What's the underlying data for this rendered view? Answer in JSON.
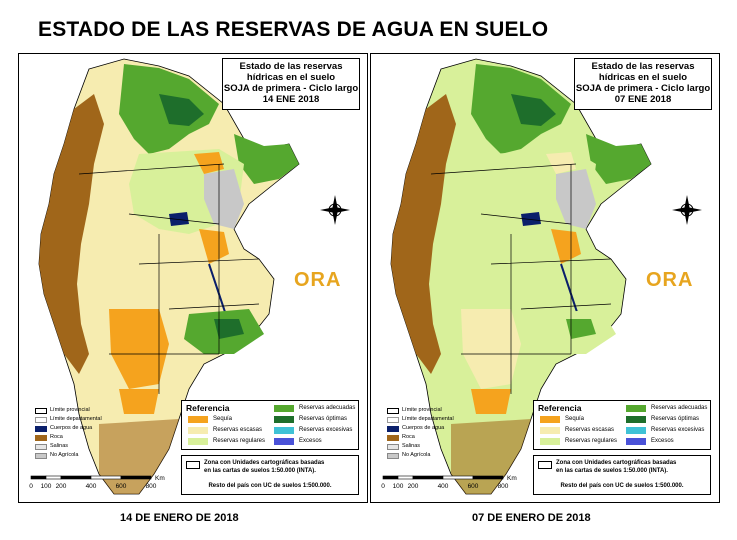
{
  "title": "ESTADO DE LAS RESERVAS DE AGUA EN SUELO",
  "panels": [
    {
      "info": [
        "Estado de las reservas",
        "hídricas en el suelo",
        "SOJA de primera - Ciclo largo",
        "14 ENE 2018"
      ],
      "caption": "14 DE ENERO DE 2018"
    },
    {
      "info": [
        "Estado de las reservas",
        "hídricas en el suelo",
        "SOJA de primera - Ciclo largo",
        "07 ENE 2018"
      ],
      "caption": "07 DE ENERO DE 2018"
    }
  ],
  "legend_small": [
    {
      "label": "Límite provincial",
      "color": "#ffffff",
      "border": "#000000"
    },
    {
      "label": "Límite departamental",
      "color": "#ffffff",
      "border": "#999999"
    },
    {
      "label": "Cuerpos de agua",
      "color": "#0a1f6b",
      "border": "#0a1f6b"
    },
    {
      "label": "Roca",
      "color": "#a0661a",
      "border": "#a0661a"
    },
    {
      "label": "Salinas",
      "color": "#e6e6e6",
      "border": "#888888"
    },
    {
      "label": "No Agrícola",
      "color": "#c8c8c8",
      "border": "#888888"
    }
  ],
  "referencia": {
    "title": "Referencia",
    "left": [
      {
        "label": "Sequía",
        "color": "#f5a31e"
      },
      {
        "label": "Reservas escasas",
        "color": "#f6ecb0"
      },
      {
        "label": "Reservas regulares",
        "color": "#d8f09a"
      }
    ],
    "right": [
      {
        "label": "Reservas adecuadas",
        "color": "#55a82f"
      },
      {
        "label": "Reservas óptimas",
        "color": "#1e6e2b"
      },
      {
        "label": "Reservas excesivas",
        "color": "#3fc2d6"
      },
      {
        "label": "Excesos",
        "color": "#4a52d8"
      }
    ]
  },
  "zona": {
    "line1": "Zona con Unidades cartográficas basadas",
    "line2": "en las cartas de suelos 1:50.000 (INTA).",
    "rest": "Resto del país con UC de suelos 1:500.000."
  },
  "scale": {
    "ticks": [
      "0",
      "100",
      "200",
      "400",
      "600",
      "800"
    ],
    "unit": "Km"
  },
  "logo": "ORA",
  "colors": {
    "sequia": "#f5a31e",
    "escasas": "#f6ecb0",
    "regulares": "#d8f09a",
    "adecuadas": "#55a82f",
    "optimas": "#1e6e2b",
    "excesivas": "#3fc2d6",
    "excesos": "#4a52d8",
    "roca": "#a0661a",
    "agua": "#0a1f6b",
    "no_agricola": "#c8c8c8"
  }
}
